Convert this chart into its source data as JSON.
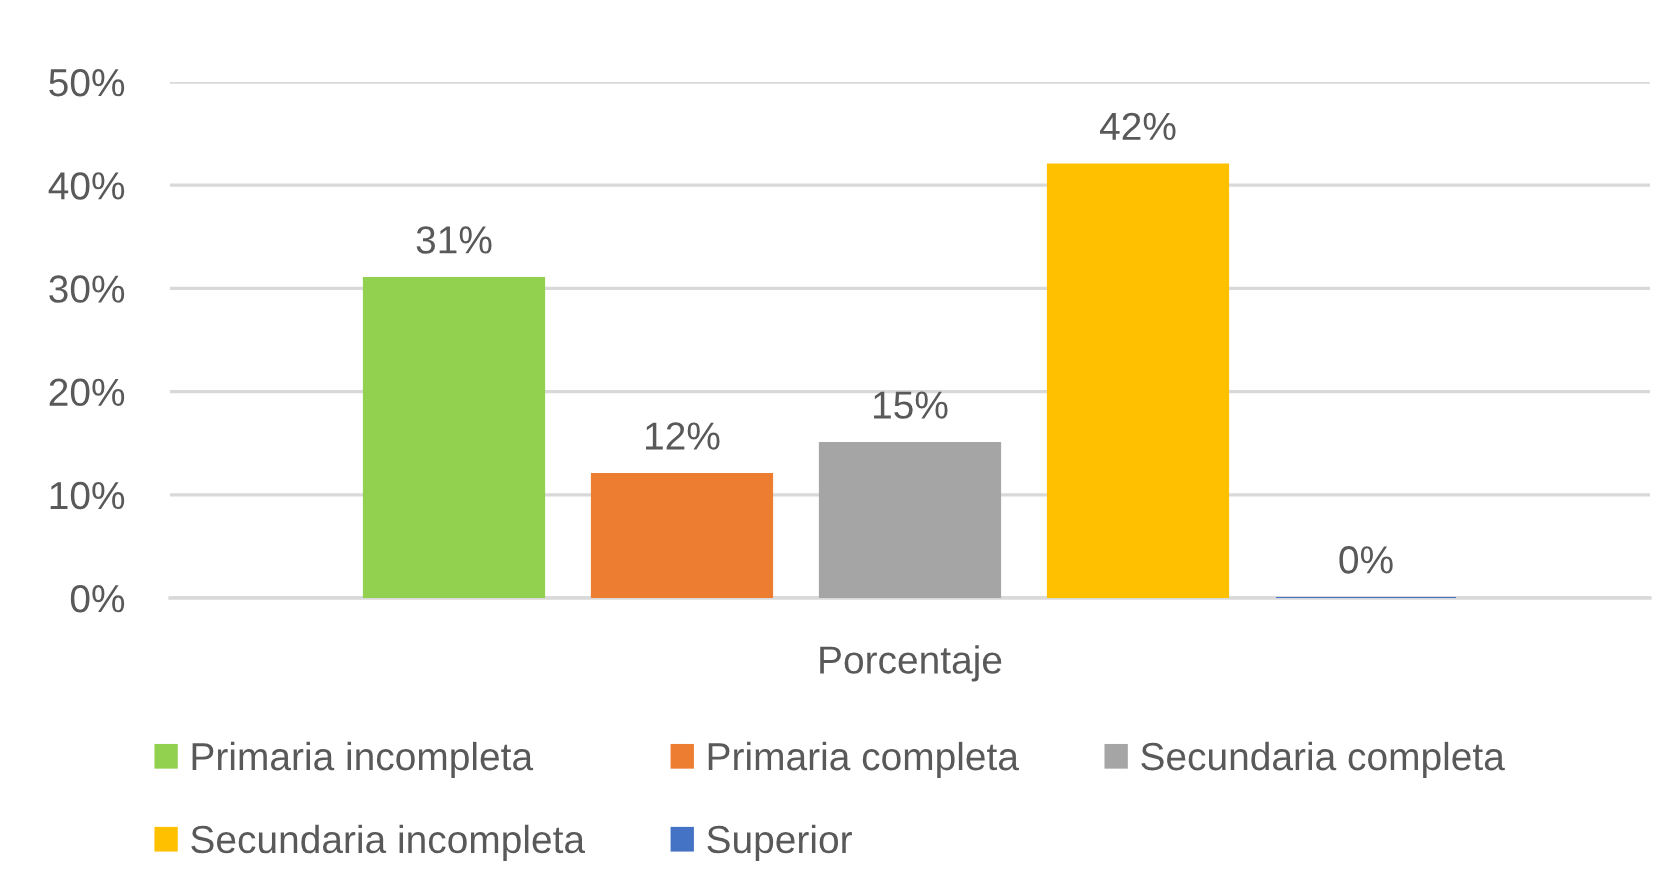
{
  "chart_data": {
    "type": "bar",
    "categories": [
      "Porcentaje"
    ],
    "series": [
      {
        "name": "Primaria incompleta",
        "color": "#92d050",
        "values": [
          31
        ],
        "value_labels": [
          "31%"
        ]
      },
      {
        "name": "Primaria completa",
        "color": "#ed7d31",
        "values": [
          12
        ],
        "value_labels": [
          "12%"
        ]
      },
      {
        "name": "Secundaria completa",
        "color": "#a5a5a5",
        "values": [
          15
        ],
        "value_labels": [
          "15%"
        ]
      },
      {
        "name": "Secundaria incompleta",
        "color": "#ffc000",
        "values": [
          42
        ],
        "value_labels": [
          "42%"
        ]
      },
      {
        "name": "Superior",
        "color": "#4472c4",
        "values": [
          0
        ],
        "value_labels": [
          "0%"
        ]
      }
    ],
    "ylim": [
      0,
      50
    ],
    "yticks": [
      {
        "value": 0,
        "label": "0%"
      },
      {
        "value": 10,
        "label": "10%"
      },
      {
        "value": 20,
        "label": "20%"
      },
      {
        "value": 30,
        "label": "30%"
      },
      {
        "value": 40,
        "label": "40%"
      },
      {
        "value": 50,
        "label": "50%"
      }
    ],
    "grid": "y",
    "legend": "bottom"
  }
}
